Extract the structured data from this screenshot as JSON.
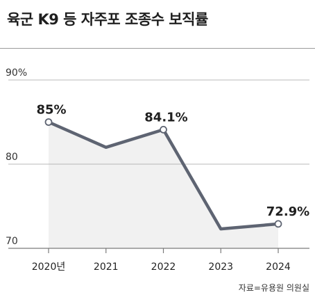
{
  "title": "육군 K9 등 자주포 조종수 보직률",
  "source": "자료=유용원 의원실",
  "colors": {
    "line": "#5e6472",
    "area": "#f1f1f1",
    "grid": "#b8b8b8",
    "axis": "#7a7a7a",
    "marker_fill": "#ffffff"
  },
  "chart_data": {
    "type": "line",
    "title": "육군 K9 등 자주포 조종수 보직률",
    "xlabel": "",
    "ylabel": "",
    "categories": [
      "2020년",
      "2021",
      "2022",
      "2023",
      "2024"
    ],
    "series": [
      {
        "values": [
          85,
          82,
          84.1,
          72.3,
          72.9
        ]
      }
    ],
    "data_labels": [
      "85%",
      "",
      "84.1%",
      "",
      "72.9%"
    ],
    "markers": [
      true,
      false,
      true,
      false,
      true
    ],
    "yticks": [
      {
        "value": 90,
        "label": "90%"
      },
      {
        "value": 80,
        "label": "80"
      },
      {
        "value": 70,
        "label": "70"
      }
    ],
    "ylim": [
      70,
      90
    ],
    "grid": true,
    "legend": "none"
  }
}
